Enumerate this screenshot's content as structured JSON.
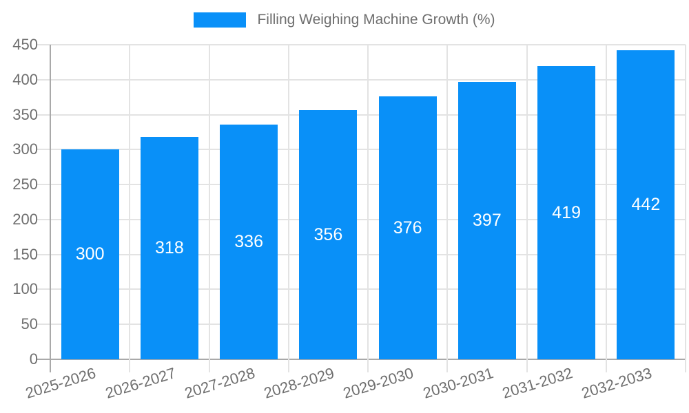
{
  "chart_data": {
    "type": "bar",
    "title": "Filling Weighing Machine Growth (%)",
    "categories": [
      "2025-2026",
      "2026-2027",
      "2027-2028",
      "2028-2029",
      "2029-2030",
      "2030-2031",
      "2031-2032",
      "2032-2033"
    ],
    "values": [
      300,
      318,
      336,
      356,
      376,
      397,
      419,
      442
    ],
    "ylim": [
      0,
      450
    ],
    "yticks": [
      0,
      50,
      100,
      150,
      200,
      250,
      300,
      350,
      400,
      450
    ],
    "grid": true,
    "legend_position": "top",
    "value_label_position": "inside-center"
  },
  "colors": {
    "bar": "#0990f8",
    "text": "#6e6e6e",
    "grid": "#e3e3e3",
    "axis": "#a9a9a9",
    "value_label": "#ffffff",
    "background": "#ffffff"
  }
}
